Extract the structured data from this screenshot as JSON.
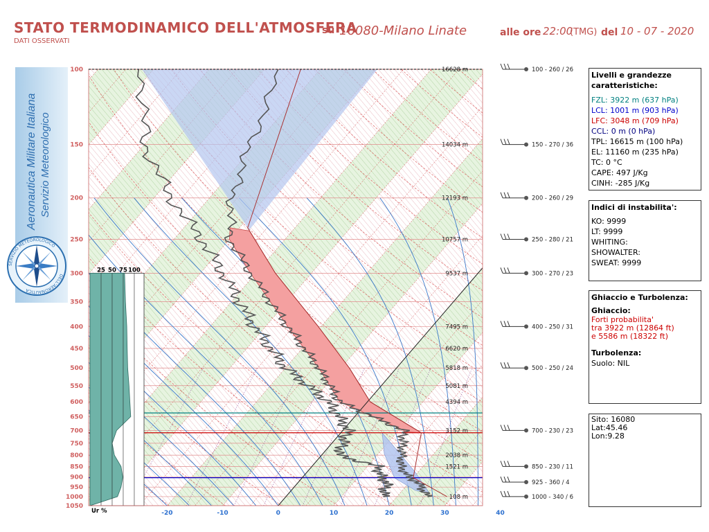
{
  "header": {
    "title": "STATO TERMODINAMICO DELL'ATMOSFERA",
    "subtitle": "DATI OSSERVATI",
    "su_label": "su",
    "station": "16080-Milano Linate",
    "alle_ore_label": "alle ore",
    "time": "22:00",
    "tmg": "(TMG)",
    "del_label": "del",
    "date": "10 - 07 - 2020"
  },
  "logo": {
    "line1": "Aeronautica Militare Italiana",
    "line2": "Servizio Meteorologico",
    "ring_top": "SERVIZIO METEOROLOGICO",
    "ring_bottom": "DELL'AERONAUTICA",
    "icon": "compass-rose-icon"
  },
  "panels": {
    "livelli": {
      "title": "Livelli e grandezze caratteristiche:",
      "fzl": "FZL: 3922 m (637 hPa)",
      "lcl": "LCL: 1001 m (903 hPa)",
      "lfc": "LFC: 3048 m (709 hPa)",
      "ccl": "CCL: 0 m (0 hPa)",
      "tpl": "TPL: 16615 m (100 hPa)",
      "el": "EL: 11160 m (235 hPa)",
      "tc": "TC: 0 °C",
      "cape": "CAPE: 497 J/Kg",
      "cinh": "CINH: -285 J/Kg"
    },
    "indici": {
      "title": "Indici di instabilita':",
      "ko": "KO: 9999",
      "lt": "LT: 9999",
      "whiting": "WHITING:",
      "showalter": "SHOWALTER:",
      "sweat": "SWEAT: 9999"
    },
    "ghiaccio": {
      "title": "Ghiaccio e Turbolenza:",
      "ghiaccio_label": "Ghiaccio:",
      "l1": "Forti probabilita'",
      "l2": "tra 3922 m (12864 ft)",
      "l3": "e 5586 m (18322 ft)",
      "turb_label": "Turbolenza:",
      "turb_value": "Suolo: NIL"
    },
    "sito": {
      "sito": "Sito: 16080",
      "lat": "Lat:45.46",
      "lon": "Lon:9.28"
    }
  },
  "colors": {
    "title": "#c0504d",
    "fzl": "#008080",
    "lcl": "#0000cc",
    "lfc": "#cc0000",
    "ccl": "#000080",
    "ice": "#cc0000",
    "temperature": "#555555",
    "dewpoint": "#555555",
    "cape_fill": "#f4a0a0",
    "cin_fill": "#b3c6f0",
    "humidity_fill": "#6fb3a8"
  },
  "chart_data": {
    "type": "line",
    "title": "STATO TERMODINAMICO DELL'ATMOSFERA",
    "xlabel": "",
    "ylabel": "",
    "pressure_ticks": [
      100,
      150,
      200,
      250,
      300,
      350,
      400,
      450,
      500,
      550,
      600,
      650,
      700,
      750,
      800,
      850,
      900,
      950,
      1000,
      1050
    ],
    "height_labels": [
      {
        "p": 100,
        "label": "16628 m"
      },
      {
        "p": 150,
        "label": "14034 m"
      },
      {
        "p": 200,
        "label": "12193 m"
      },
      {
        "p": 250,
        "label": "10757 m"
      },
      {
        "p": 300,
        "label": "9537 m"
      },
      {
        "p": 400,
        "label": "7495 m"
      },
      {
        "p": 450,
        "label": "6620 m"
      },
      {
        "p": 500,
        "label": "5818 m"
      },
      {
        "p": 550,
        "label": "5081 m"
      },
      {
        "p": 600,
        "label": "4394 m"
      },
      {
        "p": 700,
        "label": "3152 m"
      },
      {
        "p": 800,
        "label": "2038 m"
      },
      {
        "p": 850,
        "label": "1521 m"
      },
      {
        "p": 1000,
        "label": "108 m"
      }
    ],
    "wind_labels": [
      {
        "p": 100,
        "label": "100 - 260 / 26"
      },
      {
        "p": 150,
        "label": "150 - 270 / 36"
      },
      {
        "p": 200,
        "label": "200 - 260 / 29"
      },
      {
        "p": 250,
        "label": "250 - 280 / 21"
      },
      {
        "p": 300,
        "label": "300 - 270 / 23"
      },
      {
        "p": 400,
        "label": "400 - 250 / 31"
      },
      {
        "p": 500,
        "label": "500 - 250 / 24"
      },
      {
        "p": 700,
        "label": "700 - 230 / 23"
      },
      {
        "p": 850,
        "label": "850 - 230 / 11"
      },
      {
        "p": 925,
        "label": "925 - 360 / 4"
      },
      {
        "p": 1000,
        "label": "1000 - 340 / 6"
      }
    ],
    "temp_ticks": [
      -20,
      -10,
      0,
      10,
      20,
      30,
      40
    ],
    "temperature": [
      {
        "p": 1000,
        "t": 25.5
      },
      {
        "p": 925,
        "t": 21.5
      },
      {
        "p": 900,
        "t": 19
      },
      {
        "p": 850,
        "t": 16
      },
      {
        "p": 700,
        "t": 11
      },
      {
        "p": 600,
        "t": -5
      },
      {
        "p": 500,
        "t": -14
      },
      {
        "p": 400,
        "t": -26
      },
      {
        "p": 300,
        "t": -41
      },
      {
        "p": 250,
        "t": -50
      },
      {
        "p": 200,
        "t": -56
      },
      {
        "p": 150,
        "t": -61
      },
      {
        "p": 100,
        "t": -67
      }
    ],
    "dewpoint": [
      {
        "p": 1000,
        "t": 17.5
      },
      {
        "p": 950,
        "t": 16.5
      },
      {
        "p": 925,
        "t": 16
      },
      {
        "p": 900,
        "t": 14
      },
      {
        "p": 850,
        "t": 12
      },
      {
        "p": 800,
        "t": 3
      },
      {
        "p": 700,
        "t": 1
      },
      {
        "p": 600,
        "t": -7
      },
      {
        "p": 500,
        "t": -20
      },
      {
        "p": 400,
        "t": -32
      },
      {
        "p": 300,
        "t": -46
      },
      {
        "p": 250,
        "t": -55
      },
      {
        "p": 200,
        "t": -67
      },
      {
        "p": 150,
        "t": -80
      },
      {
        "p": 100,
        "t": -92
      }
    ],
    "parcel": [
      {
        "p": 1000,
        "t": 25.5
      },
      {
        "p": 903,
        "t": 16.5
      },
      {
        "p": 709,
        "t": 11
      },
      {
        "p": 600,
        "t": -3
      },
      {
        "p": 500,
        "t": -12
      },
      {
        "p": 400,
        "t": -24
      },
      {
        "p": 300,
        "t": -40
      },
      {
        "p": 235,
        "t": -52
      },
      {
        "p": 100,
        "t": -67
      }
    ],
    "humidity": {
      "label": "Ur %",
      "ticks": [
        25,
        50,
        75,
        100
      ],
      "values": [
        {
          "p": 1000,
          "rh": 62
        },
        {
          "p": 950,
          "rh": 70
        },
        {
          "p": 900,
          "rh": 74
        },
        {
          "p": 850,
          "rh": 70
        },
        {
          "p": 800,
          "rh": 55
        },
        {
          "p": 750,
          "rh": 50
        },
        {
          "p": 700,
          "rh": 60
        },
        {
          "p": 650,
          "rh": 92
        },
        {
          "p": 600,
          "rh": 90
        },
        {
          "p": 550,
          "rh": 88
        },
        {
          "p": 500,
          "rh": 85
        },
        {
          "p": 450,
          "rh": 84
        },
        {
          "p": 400,
          "rh": 83
        },
        {
          "p": 350,
          "rh": 80
        },
        {
          "p": 300,
          "rh": 78
        }
      ]
    },
    "levels": {
      "lcl_p": 903,
      "lfc_p": 709,
      "el_p": 235,
      "fzl_p": 637
    }
  }
}
